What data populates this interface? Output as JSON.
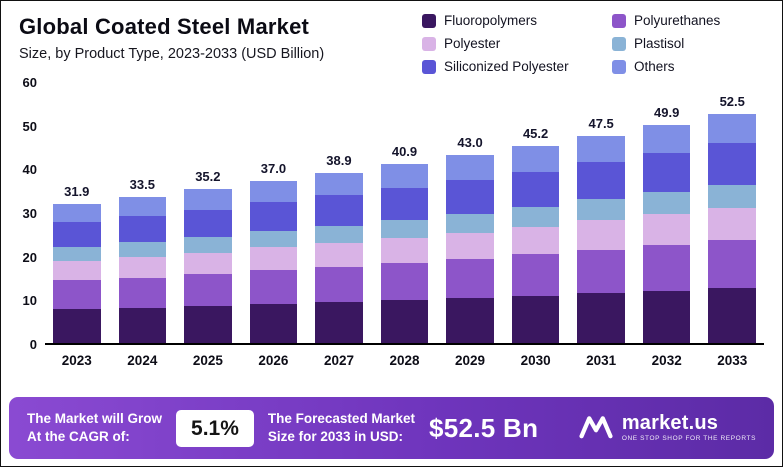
{
  "header": {
    "title": "Global Coated Steel Market",
    "subtitle": "Size, by Product Type, 2023-2033 (USD Billion)"
  },
  "legend": [
    {
      "label": "Fluoropolymers",
      "color": "#3a1760"
    },
    {
      "label": "Polyurethanes",
      "color": "#8d55c9"
    },
    {
      "label": "Polyester",
      "color": "#d9b3e6"
    },
    {
      "label": "Plastisol",
      "color": "#8ab3d6"
    },
    {
      "label": "Siliconized Polyester",
      "color": "#5a55d6"
    },
    {
      "label": "Others",
      "color": "#7f8fe6"
    }
  ],
  "chart_data": {
    "type": "bar",
    "stacked": true,
    "title": "Global Coated Steel Market",
    "subtitle": "Size, by Product Type, 2023-2033 (USD Billion)",
    "xlabel": "",
    "ylabel": "USD Billion",
    "ylim": [
      0,
      60
    ],
    "yticks": [
      0,
      10,
      20,
      30,
      40,
      50,
      60
    ],
    "grid": false,
    "legend_position": "top-right",
    "categories": [
      "2023",
      "2024",
      "2025",
      "2026",
      "2027",
      "2028",
      "2029",
      "2030",
      "2031",
      "2032",
      "2033"
    ],
    "totals": [
      "31.9",
      "33.5",
      "35.2",
      "37.0",
      "38.9",
      "40.9",
      "43.0",
      "45.2",
      "47.5",
      "49.9",
      "52.5"
    ],
    "series": [
      {
        "name": "Fluoropolymers",
        "color": "#3a1760",
        "values": [
          7.7,
          8.0,
          8.4,
          8.9,
          9.3,
          9.8,
          10.3,
          10.8,
          11.4,
          12.0,
          12.6
        ]
      },
      {
        "name": "Polyurethanes",
        "color": "#8d55c9",
        "values": [
          6.7,
          7.0,
          7.4,
          7.8,
          8.2,
          8.6,
          9.0,
          9.5,
          10.0,
          10.5,
          11.0
        ]
      },
      {
        "name": "Polyester",
        "color": "#d9b3e6",
        "values": [
          4.5,
          4.7,
          4.9,
          5.2,
          5.4,
          5.7,
          6.0,
          6.3,
          6.7,
          7.0,
          7.4
        ]
      },
      {
        "name": "Plastisol",
        "color": "#8ab3d6",
        "values": [
          3.2,
          3.4,
          3.5,
          3.7,
          3.9,
          4.1,
          4.3,
          4.5,
          4.8,
          5.0,
          5.3
        ]
      },
      {
        "name": "Siliconized Polyester",
        "color": "#5a55d6",
        "values": [
          5.7,
          6.0,
          6.3,
          6.7,
          7.0,
          7.4,
          7.7,
          8.1,
          8.6,
          9.0,
          9.5
        ]
      },
      {
        "name": "Others",
        "color": "#7f8fe6",
        "values": [
          4.1,
          4.4,
          4.7,
          4.7,
          5.1,
          5.3,
          5.7,
          6.0,
          6.0,
          6.4,
          6.7
        ]
      }
    ]
  },
  "footer": {
    "cagr_label_line1": "The Market will Grow",
    "cagr_label_line2": "At the CAGR of:",
    "cagr_value": "5.1%",
    "forecast_label_line1": "The Forecasted Market",
    "forecast_label_line2": "Size for 2033 in USD:",
    "forecast_value": "$52.5 Bn",
    "brand_name": "market.us",
    "brand_tagline": "ONE STOP SHOP FOR THE REPORTS"
  }
}
